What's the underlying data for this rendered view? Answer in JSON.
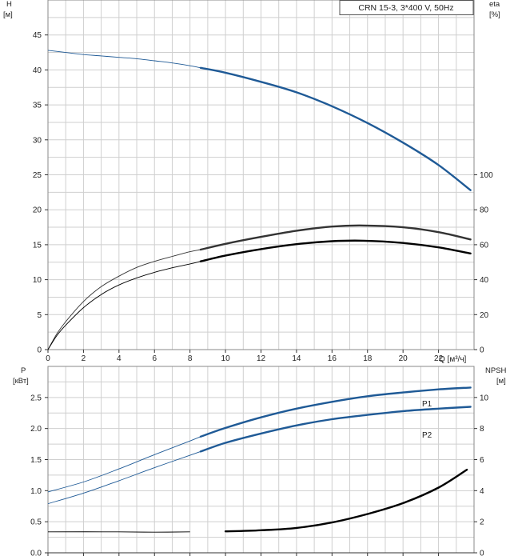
{
  "title": "CRN 15-3, 3*400 V, 50Hz",
  "chart_data": [
    {
      "type": "line",
      "panel": "head-efficiency",
      "xlabel": "Q [м³/ч]",
      "xlim": [
        0,
        24
      ],
      "x_ticks": [
        "0",
        "2",
        "4",
        "6",
        "8",
        "10",
        "12",
        "14",
        "16",
        "18",
        "20",
        "22"
      ],
      "ylabel_left": [
        "H",
        "[м]"
      ],
      "ylim_left": [
        0,
        50
      ],
      "y_ticks_left": [
        "0",
        "5",
        "10",
        "15",
        "20",
        "25",
        "30",
        "35",
        "40",
        "45"
      ],
      "ylabel_right": [
        "eta",
        "[%]"
      ],
      "ylim_right": [
        0,
        200
      ],
      "y_ticks_right": [
        "0",
        "20",
        "40",
        "60",
        "80",
        "100"
      ],
      "grid": true,
      "series": [
        {
          "axis": "left",
          "color": "#1f5a96",
          "points": [
            [
              0,
              42.8
            ],
            [
              1,
              42.5
            ],
            [
              2,
              42.2
            ],
            [
              3,
              42.0
            ],
            [
              4,
              41.8
            ],
            [
              5,
              41.6
            ],
            [
              6,
              41.3
            ],
            [
              7,
              41.0
            ],
            [
              8,
              40.6
            ],
            [
              8.6,
              40.3
            ],
            [
              10,
              39.6
            ],
            [
              12,
              38.3
            ],
            [
              14,
              36.8
            ],
            [
              16,
              34.8
            ],
            [
              18,
              32.4
            ],
            [
              20,
              29.6
            ],
            [
              22,
              26.4
            ],
            [
              23.8,
              22.8
            ]
          ]
        },
        {
          "axis": "right",
          "color": "#333333",
          "points": [
            [
              0,
              0
            ],
            [
              0.5,
              9
            ],
            [
              1,
              16
            ],
            [
              2,
              27.5
            ],
            [
              3,
              36
            ],
            [
              4,
              42
            ],
            [
              5,
              47
            ],
            [
              6,
              50.5
            ],
            [
              7,
              53.3
            ],
            [
              8,
              56
            ],
            [
              8.6,
              57.2
            ],
            [
              10,
              60.5
            ],
            [
              12,
              64.5
            ],
            [
              14,
              68
            ],
            [
              16,
              70.4
            ],
            [
              17.8,
              71
            ],
            [
              20,
              70
            ],
            [
              22,
              67.2
            ],
            [
              23.8,
              63
            ]
          ]
        },
        {
          "axis": "right",
          "color": "#000000",
          "points": [
            [
              0,
              0
            ],
            [
              0.5,
              8
            ],
            [
              1,
              14
            ],
            [
              2,
              24
            ],
            [
              3,
              31.5
            ],
            [
              4,
              37
            ],
            [
              5,
              41
            ],
            [
              6,
              44.2
            ],
            [
              7,
              46.8
            ],
            [
              8,
              49
            ],
            [
              8.6,
              50.5
            ],
            [
              10,
              53.8
            ],
            [
              12,
              57.5
            ],
            [
              14,
              60.3
            ],
            [
              16,
              62
            ],
            [
              17.8,
              62.3
            ],
            [
              20,
              61
            ],
            [
              22,
              58.5
            ],
            [
              23.8,
              55
            ]
          ]
        }
      ]
    },
    {
      "type": "line",
      "panel": "power-npsh",
      "xlim": [
        0,
        24
      ],
      "ylabel_left": [
        "P",
        "[кВт]"
      ],
      "ylim_left": [
        0,
        3.0
      ],
      "y_ticks_left": [
        "0.0",
        "0.5",
        "1.0",
        "1.5",
        "2.0",
        "2.5"
      ],
      "ylabel_right": [
        "NPSH",
        "[м]"
      ],
      "ylim_right": [
        0,
        12
      ],
      "y_ticks_right": [
        "0",
        "2",
        "4",
        "6",
        "8",
        "10"
      ],
      "grid": true,
      "series": [
        {
          "name": "P1",
          "axis": "left",
          "color": "#1f5a96",
          "points": [
            [
              0,
              0.98
            ],
            [
              2,
              1.14
            ],
            [
              4,
              1.35
            ],
            [
              6,
              1.58
            ],
            [
              8,
              1.8
            ],
            [
              8.6,
              1.87
            ],
            [
              10,
              2.01
            ],
            [
              12,
              2.18
            ],
            [
              14,
              2.32
            ],
            [
              16,
              2.43
            ],
            [
              18,
              2.52
            ],
            [
              20,
              2.58
            ],
            [
              22,
              2.63
            ],
            [
              23.8,
              2.66
            ]
          ]
        },
        {
          "name": "P2",
          "axis": "left",
          "color": "#1f5a96",
          "points": [
            [
              0,
              0.79
            ],
            [
              2,
              0.96
            ],
            [
              4,
              1.16
            ],
            [
              6,
              1.37
            ],
            [
              8,
              1.57
            ],
            [
              8.6,
              1.63
            ],
            [
              10,
              1.77
            ],
            [
              12,
              1.92
            ],
            [
              14,
              2.05
            ],
            [
              16,
              2.15
            ],
            [
              18,
              2.22
            ],
            [
              20,
              2.28
            ],
            [
              22,
              2.32
            ],
            [
              23.8,
              2.35
            ]
          ]
        },
        {
          "axis": "right",
          "color": "#000000",
          "points": [
            [
              0,
              1.35
            ],
            [
              4,
              1.35
            ],
            [
              6,
              1.33
            ],
            [
              8,
              1.35
            ],
            [
              10,
              1.38
            ],
            [
              12,
              1.45
            ],
            [
              14,
              1.6
            ],
            [
              16,
              1.95
            ],
            [
              18,
              2.5
            ],
            [
              20,
              3.2
            ],
            [
              22,
              4.2
            ],
            [
              23.6,
              5.35
            ]
          ]
        }
      ]
    }
  ]
}
